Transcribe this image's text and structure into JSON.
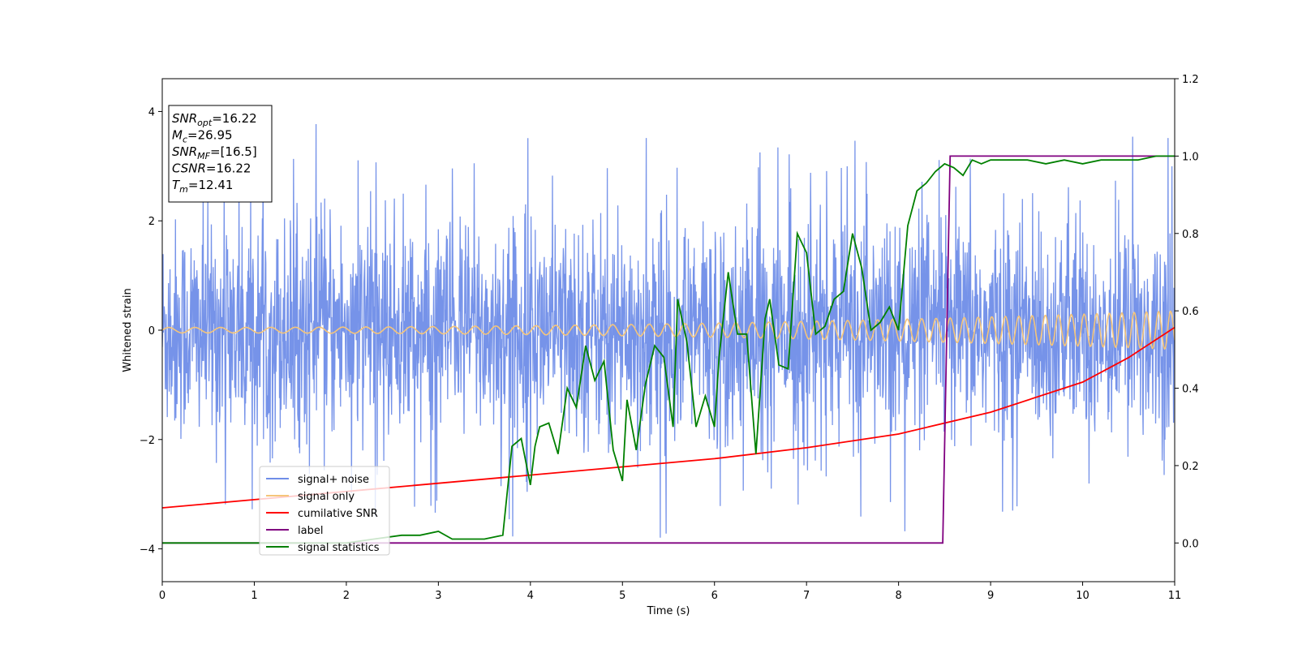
{
  "chart_data": {
    "type": "line",
    "xlabel": "Time (s)",
    "ylabel": "Whitened strain",
    "xlim": [
      0,
      11
    ],
    "ylim": [
      -4.6,
      4.6
    ],
    "y2lim": [
      -0.1,
      1.2
    ],
    "x_ticks": [
      "0",
      "1",
      "2",
      "3",
      "4",
      "5",
      "6",
      "7",
      "8",
      "9",
      "10",
      "11"
    ],
    "y_ticks": [
      "−4",
      "−2",
      "0",
      "2",
      "4"
    ],
    "y2_ticks": [
      "0.0",
      "0.2",
      "0.4",
      "0.6",
      "0.8",
      "1.0",
      "1.2"
    ],
    "grid": false,
    "legend_position": "lower-left",
    "info_box": [
      {
        "main": "SNR",
        "sub": "opt",
        "rest": "=16.22"
      },
      {
        "main": "M",
        "sub": "c",
        "rest": "=26.95"
      },
      {
        "main": "SNR",
        "sub": "MF",
        "rest": "=[16.5]"
      },
      {
        "main": "CSNR",
        "sub": "",
        "rest": "=16.22"
      },
      {
        "main": "T",
        "sub": "m",
        "rest": "=12.41"
      }
    ],
    "series": [
      {
        "name": "signal+ noise",
        "axis": "left",
        "color": "#6f8de8",
        "description": "dense whitened noise, roughly -2.5..2.5 with spikes up to ~4",
        "noise_std": 1.0,
        "spike_max": 3.95,
        "spike_min": -4.1
      },
      {
        "name": "signal only",
        "axis": "left",
        "color": "#f5c57a",
        "description": "chirp oscillation with growing amplitude",
        "amplitude_start": 0.05,
        "amplitude_end": 0.35
      },
      {
        "name": "cumilative SNR",
        "axis": "left",
        "color": "#ff0000",
        "x": [
          0,
          1,
          2,
          3,
          4,
          5,
          6,
          7,
          8,
          9,
          10,
          10.5,
          11
        ],
        "y": [
          -3.25,
          -3.1,
          -2.95,
          -2.8,
          -2.65,
          -2.5,
          -2.35,
          -2.15,
          -1.9,
          -1.5,
          -0.95,
          -0.5,
          0.05
        ]
      },
      {
        "name": "label",
        "axis": "right",
        "color": "#800080",
        "x": [
          0,
          8.48,
          8.56,
          11
        ],
        "y": [
          0.0,
          0.0,
          1.0,
          1.0
        ]
      },
      {
        "name": "signal statistics",
        "axis": "right",
        "color": "#008000",
        "x": [
          0,
          0.5,
          1,
          1.5,
          2,
          2.3,
          2.6,
          2.8,
          3.0,
          3.15,
          3.3,
          3.5,
          3.7,
          3.8,
          3.9,
          4.0,
          4.05,
          4.1,
          4.2,
          4.3,
          4.4,
          4.5,
          4.6,
          4.7,
          4.8,
          4.9,
          5.0,
          5.05,
          5.15,
          5.25,
          5.35,
          5.45,
          5.55,
          5.6,
          5.7,
          5.8,
          5.9,
          6.0,
          6.05,
          6.15,
          6.25,
          6.35,
          6.45,
          6.55,
          6.6,
          6.7,
          6.8,
          6.9,
          7.0,
          7.1,
          7.2,
          7.3,
          7.4,
          7.5,
          7.6,
          7.7,
          7.8,
          7.9,
          8.0,
          8.1,
          8.2,
          8.3,
          8.4,
          8.5,
          8.6,
          8.7,
          8.8,
          8.9,
          9.0,
          9.2,
          9.4,
          9.6,
          9.8,
          10.0,
          10.2,
          10.4,
          10.6,
          10.8,
          11.0
        ],
        "y": [
          0.0,
          0.0,
          0.0,
          0.0,
          0.0,
          0.01,
          0.02,
          0.02,
          0.03,
          0.01,
          0.01,
          0.01,
          0.02,
          0.25,
          0.27,
          0.15,
          0.25,
          0.3,
          0.31,
          0.23,
          0.4,
          0.35,
          0.51,
          0.42,
          0.47,
          0.24,
          0.16,
          0.37,
          0.24,
          0.41,
          0.51,
          0.48,
          0.3,
          0.63,
          0.52,
          0.3,
          0.38,
          0.3,
          0.48,
          0.7,
          0.54,
          0.54,
          0.23,
          0.58,
          0.63,
          0.46,
          0.45,
          0.8,
          0.75,
          0.54,
          0.56,
          0.63,
          0.65,
          0.8,
          0.71,
          0.55,
          0.57,
          0.61,
          0.55,
          0.82,
          0.91,
          0.93,
          0.96,
          0.98,
          0.97,
          0.95,
          0.99,
          0.98,
          0.99,
          0.99,
          0.99,
          0.98,
          0.99,
          0.98,
          0.99,
          0.99,
          0.99,
          1.0,
          1.0
        ]
      }
    ]
  }
}
